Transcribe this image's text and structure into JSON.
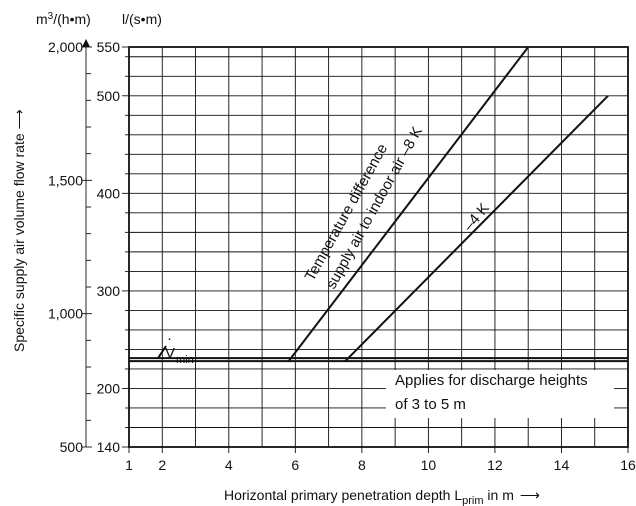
{
  "chart_data": {
    "type": "line",
    "xlabel": {
      "main": "Horizontal primary penetration depth L",
      "sub": "prim",
      "tail": " in m",
      "arrow": "⟶"
    },
    "ylabel": "Specific supply air volume flow rate",
    "ylabel_arrow": "⟶",
    "left_unit": {
      "base": "m",
      "exp": "3",
      "rest": "/(h•m)"
    },
    "right_unit": "l/(s•m)",
    "x_ticks": [
      "1",
      "2",
      "4",
      "6",
      "8",
      "10",
      "12",
      "14",
      "16"
    ],
    "left_ticks": [
      "500",
      "1,000",
      "1,500",
      "2,000"
    ],
    "right_ticks": [
      "140",
      "200",
      "300",
      "400",
      "500",
      "550"
    ],
    "xlim": [
      1,
      16
    ],
    "ylim_m3h": [
      500,
      2000
    ],
    "ylim_ls": [
      140,
      550
    ],
    "grid": true,
    "series": [
      {
        "name": "–8 K",
        "x": [
          5.8,
          13.0
        ],
        "y_ls": [
          228,
          550
        ]
      },
      {
        "name": "–4 K",
        "x": [
          7.5,
          15.4
        ],
        "y_ls": [
          228,
          500
        ]
      }
    ],
    "vmin": {
      "symbol": "V",
      "dot": "·",
      "sub": "min",
      "y_ls": 228
    },
    "label_upper": "Temperature difference",
    "label_lower": "supply air to indoor air –8 K",
    "label_minus4": "–4 K",
    "note": [
      "Applies for discharge heights",
      "of 3 to 5 m"
    ]
  }
}
